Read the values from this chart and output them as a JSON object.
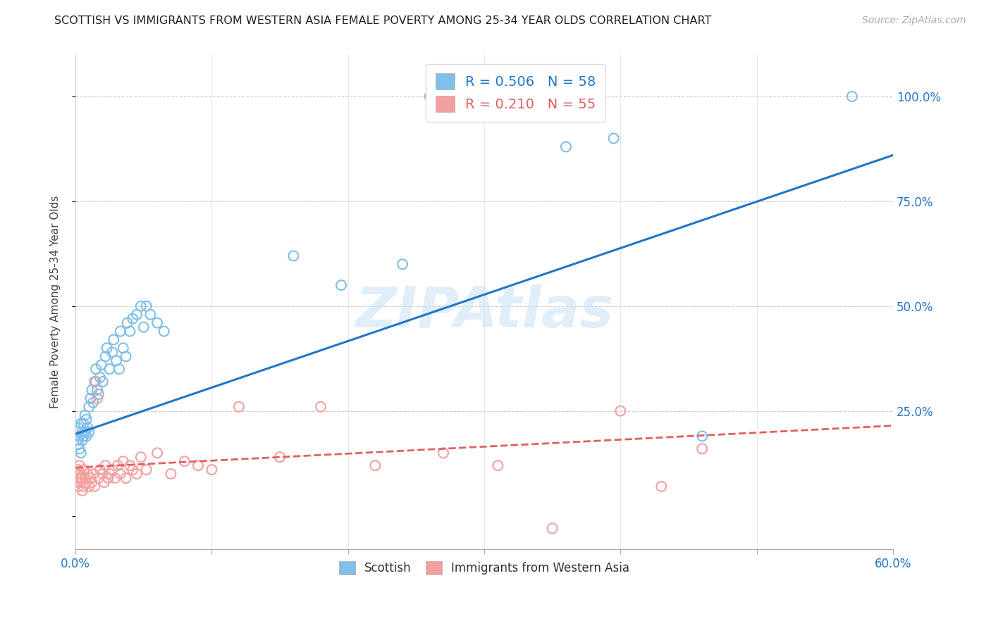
{
  "title": "SCOTTISH VS IMMIGRANTS FROM WESTERN ASIA FEMALE POVERTY AMONG 25-34 YEAR OLDS CORRELATION CHART",
  "source": "Source: ZipAtlas.com",
  "ylabel": "Female Poverty Among 25-34 Year Olds",
  "scottish_R": "0.506",
  "scottish_N": "58",
  "immigrant_R": "0.210",
  "immigrant_N": "55",
  "scottish_color": "#7fbfea",
  "immigrant_color": "#f4a0a0",
  "scottish_line_color": "#2176c7",
  "immigrant_line_color": "#e06060",
  "background_color": "#ffffff",
  "xlim": [
    0.0,
    0.6
  ],
  "ylim": [
    -0.08,
    1.1
  ],
  "scottish_x": [
    0.001,
    0.001,
    0.002,
    0.002,
    0.003,
    0.003,
    0.004,
    0.004,
    0.005,
    0.005,
    0.006,
    0.006,
    0.007,
    0.007,
    0.008,
    0.008,
    0.009,
    0.01,
    0.01,
    0.011,
    0.012,
    0.013,
    0.014,
    0.015,
    0.016,
    0.017,
    0.018,
    0.019,
    0.02,
    0.022,
    0.023,
    0.025,
    0.027,
    0.028,
    0.03,
    0.032,
    0.033,
    0.035,
    0.037,
    0.038,
    0.04,
    0.042,
    0.045,
    0.048,
    0.05,
    0.052,
    0.055,
    0.06,
    0.065,
    0.16,
    0.195,
    0.24,
    0.26,
    0.31,
    0.36,
    0.395,
    0.46,
    0.57
  ],
  "scottish_y": [
    0.18,
    0.2,
    0.17,
    0.21,
    0.16,
    0.19,
    0.15,
    0.22,
    0.2,
    0.18,
    0.19,
    0.22,
    0.2,
    0.24,
    0.19,
    0.23,
    0.21,
    0.2,
    0.26,
    0.28,
    0.3,
    0.27,
    0.32,
    0.35,
    0.3,
    0.29,
    0.33,
    0.36,
    0.32,
    0.38,
    0.4,
    0.35,
    0.39,
    0.42,
    0.37,
    0.35,
    0.44,
    0.4,
    0.38,
    0.46,
    0.44,
    0.47,
    0.48,
    0.5,
    0.45,
    0.5,
    0.48,
    0.46,
    0.44,
    0.62,
    0.55,
    0.6,
    1.0,
    1.0,
    0.88,
    0.9,
    0.19,
    1.0
  ],
  "immigrant_x": [
    0.001,
    0.001,
    0.002,
    0.002,
    0.003,
    0.003,
    0.004,
    0.004,
    0.005,
    0.005,
    0.006,
    0.006,
    0.007,
    0.008,
    0.009,
    0.01,
    0.011,
    0.012,
    0.013,
    0.014,
    0.015,
    0.016,
    0.017,
    0.018,
    0.02,
    0.021,
    0.022,
    0.024,
    0.025,
    0.027,
    0.029,
    0.031,
    0.033,
    0.035,
    0.037,
    0.04,
    0.042,
    0.045,
    0.048,
    0.052,
    0.06,
    0.07,
    0.08,
    0.09,
    0.1,
    0.12,
    0.15,
    0.18,
    0.22,
    0.27,
    0.31,
    0.35,
    0.4,
    0.43,
    0.46
  ],
  "immigrant_y": [
    0.08,
    0.1,
    0.07,
    0.11,
    0.09,
    0.12,
    0.08,
    0.1,
    0.06,
    0.09,
    0.07,
    0.11,
    0.09,
    0.08,
    0.1,
    0.07,
    0.09,
    0.08,
    0.1,
    0.07,
    0.32,
    0.28,
    0.09,
    0.11,
    0.1,
    0.08,
    0.12,
    0.09,
    0.1,
    0.11,
    0.09,
    0.12,
    0.1,
    0.13,
    0.09,
    0.12,
    0.11,
    0.1,
    0.14,
    0.11,
    0.15,
    0.1,
    0.13,
    0.12,
    0.11,
    0.26,
    0.14,
    0.26,
    0.12,
    0.15,
    0.12,
    -0.03,
    0.25,
    0.07,
    0.16
  ],
  "scot_line_x0": 0.0,
  "scot_line_y0": 0.195,
  "scot_line_x1": 0.6,
  "scot_line_y1": 0.86,
  "immi_line_x0": 0.0,
  "immi_line_y0": 0.115,
  "immi_line_x1": 0.6,
  "immi_line_y1": 0.215
}
